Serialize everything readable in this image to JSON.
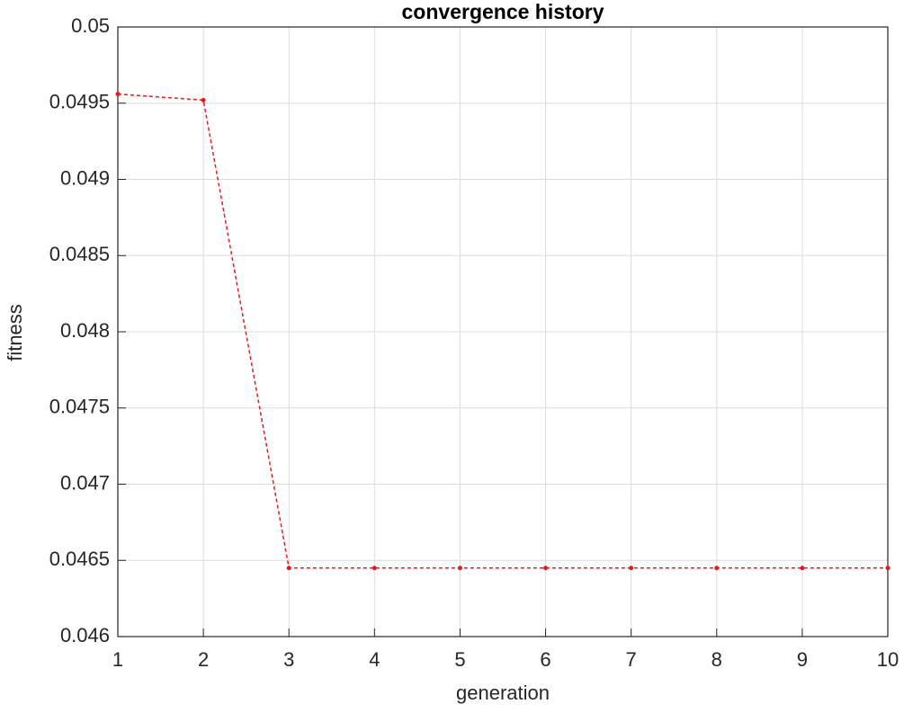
{
  "chart_data": {
    "type": "line",
    "title": "convergence history",
    "x_label": "generation",
    "y_label": "fitness",
    "x": [
      1,
      2,
      3,
      4,
      5,
      6,
      7,
      8,
      9,
      10
    ],
    "series": [
      {
        "name": "fitness",
        "color": "#e8191c",
        "values": [
          0.04956,
          0.04952,
          0.04645,
          0.04645,
          0.04645,
          0.04645,
          0.04645,
          0.04645,
          0.04645,
          0.04645
        ]
      }
    ],
    "xlim": [
      1,
      10
    ],
    "xticks": [
      1,
      2,
      3,
      4,
      5,
      6,
      7,
      8,
      9,
      10
    ],
    "ylim": [
      0.046,
      0.05
    ],
    "yticks": [
      0.046,
      0.0465,
      0.047,
      0.0475,
      0.048,
      0.0485,
      0.049,
      0.0495,
      0.05
    ],
    "grid": true
  }
}
